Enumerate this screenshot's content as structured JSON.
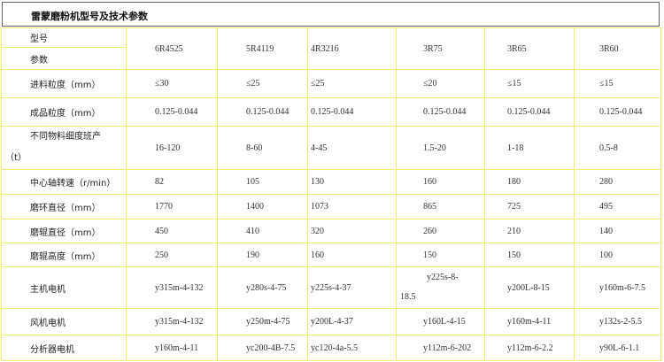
{
  "title": "雷蒙磨粉机型号及技术参数",
  "header": {
    "label_top": "型号",
    "label_bottom": "参数",
    "models": [
      "6R4525",
      "5R4119",
      "4R3216",
      "3R75",
      "3R65",
      "3R60"
    ]
  },
  "rows": [
    {
      "label": "进料粒度（mm）",
      "values": [
        "≤30",
        "≤25",
        "≤25",
        "≤20",
        "≤15",
        "≤15"
      ]
    },
    {
      "label": "成品粒度（mm）",
      "values": [
        "0.125-0.044",
        "0.125-0.044",
        "0.125-0.044",
        "0.125-0.044",
        "0.125-0.044",
        "0.125-0.044"
      ]
    },
    {
      "label": "不同物料细度班产（t）",
      "values": [
        "16-120",
        "8-60",
        "4-45",
        "1.5-20",
        "1-18",
        "0.5-8"
      ]
    },
    {
      "label": "中心轴转速（r/min）",
      "values": [
        "82",
        "105",
        "130",
        "160",
        "180",
        "280"
      ]
    },
    {
      "label": "磨环直径（mm）",
      "values": [
        "1770",
        "1400",
        "1073",
        "865",
        "725",
        "495"
      ]
    },
    {
      "label": "磨辊直径（mm）",
      "values": [
        "450",
        "410",
        "320",
        "260",
        "210",
        "140"
      ]
    },
    {
      "label": "磨辊高度（mm）",
      "values": [
        "250",
        "190",
        "160",
        "150",
        "150",
        "100"
      ]
    },
    {
      "label": "主机电机",
      "values": [
        "y315m-4-132",
        "y280s-4-75",
        "y225s-4-37",
        "y225s-8-18.5",
        "y200L-8-15",
        "y160m-6-7.5"
      ]
    },
    {
      "label": "风机电机",
      "values": [
        "y315m-4-132",
        "y250m-4-75",
        "y200L-4-37",
        "y160L-4-15",
        "y160m-4-11",
        "y132s-2-5.5"
      ]
    },
    {
      "label": "分析器电机",
      "values": [
        "y160m-4-11",
        "yc200-4B-7.5",
        "yc120-4a-5.5",
        "y112m-6-202",
        "y112m-6-2.2",
        "y90L-6-1.1"
      ]
    }
  ],
  "colors": {
    "grid": "#eeee77",
    "title_border": "#666666"
  }
}
